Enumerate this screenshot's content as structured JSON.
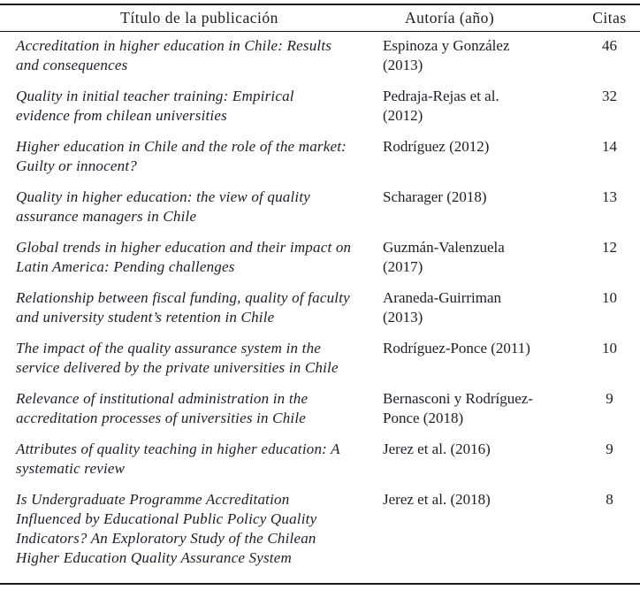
{
  "colors": {
    "background": "#ffffff",
    "text": "#1d1d26",
    "border": "#1a1a1a"
  },
  "table": {
    "columns": {
      "title": "Título de la publicación",
      "author": "Autoría (año)",
      "citations": "Citas"
    },
    "rows": [
      {
        "title": "Accreditation in higher education in Chile: Results\nand consequences",
        "author": "Espinoza y González\n(2013)",
        "citations": "46"
      },
      {
        "title": "Quality in initial teacher training: Empirical\nevidence from chilean universities",
        "author": "Pedraja-Rejas et al.\n(2012)",
        "citations": "32"
      },
      {
        "title": "Higher education in Chile and the role of the market:\nGuilty or innocent?",
        "author": "Rodríguez (2012)",
        "citations": "14"
      },
      {
        "title": "Quality in higher education: the view of quality\nassurance managers in Chile",
        "author": "Scharager (2018)",
        "citations": "13"
      },
      {
        "title": "Global trends in higher education and their impact on\nLatin America: Pending challenges",
        "author": "Guzmán-Valenzuela\n(2017)",
        "citations": "12"
      },
      {
        "title": "Relationship between fiscal funding, quality of faculty\nand university student’s retention in Chile",
        "author": "Araneda-Guirriman\n(2013)",
        "citations": "10"
      },
      {
        "title": "The impact of the quality assurance system in the\nservice delivered by the private universities in Chile",
        "author": "Rodríguez-Ponce (2011)",
        "citations": "10"
      },
      {
        "title": "Relevance of institutional administration in the\naccreditation processes of universities in Chile",
        "author": "Bernasconi y Rodríguez-\nPonce (2018)",
        "citations": "9"
      },
      {
        "title": "Attributes of quality teaching in higher education: A\nsystematic review",
        "author": "Jerez et al. (2016)",
        "citations": "9"
      },
      {
        "title": "Is Undergraduate Programme Accreditation\nInfluenced by Educational Public Policy Quality\nIndicators? An Exploratory Study of the Chilean\nHigher Education Quality Assurance System",
        "author": "Jerez et al. (2018)",
        "citations": "8"
      }
    ]
  }
}
